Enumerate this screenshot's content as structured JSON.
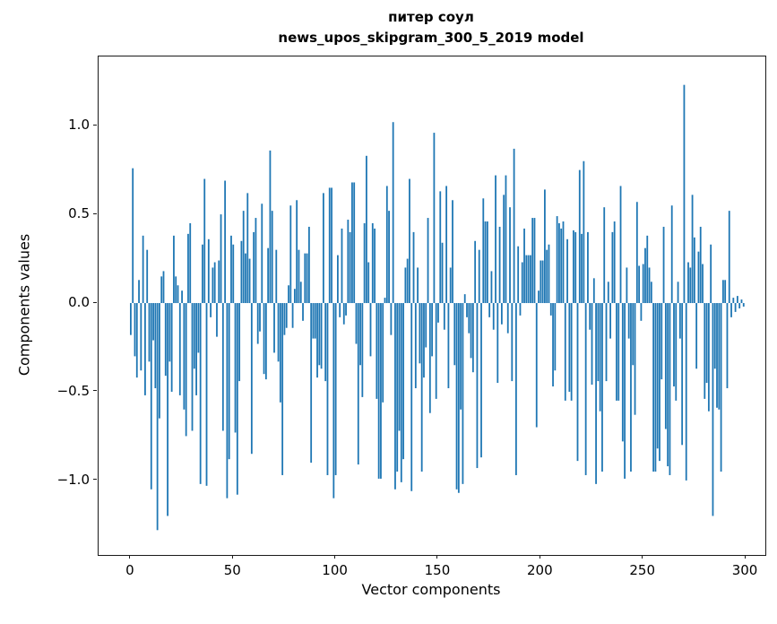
{
  "figure": {
    "title_line1": "питер соул",
    "title_line2": "news_upos_skipgram_300_5_2019 model"
  },
  "chart_data": {
    "type": "bar",
    "title": "питер соул",
    "subtitle": "news_upos_skipgram_300_5_2019 model",
    "xlabel": "Vector components",
    "ylabel": "Components values",
    "bar_color": "#1f77b4",
    "n_bars": 300,
    "x_is_index": true,
    "xlim": [
      -15.7,
      309.6
    ],
    "ylim": [
      -1.42,
      1.39
    ],
    "grid": false,
    "x_ticks": [
      0,
      50,
      100,
      150,
      200,
      250,
      300
    ],
    "x_tick_labels": [
      "0",
      "50",
      "100",
      "150",
      "200",
      "250",
      "300"
    ],
    "y_ticks": [
      -1.0,
      -0.5,
      0.0,
      0.5,
      1.0
    ],
    "y_tick_labels": [
      "−1.0",
      "−0.5",
      "0.0",
      "0.5",
      "1.0"
    ],
    "values": [
      -0.18,
      0.76,
      -0.3,
      -0.42,
      0.13,
      -0.38,
      0.38,
      -0.52,
      0.3,
      -0.33,
      -1.05,
      -0.21,
      -0.48,
      -1.28,
      -0.65,
      0.15,
      0.18,
      -0.41,
      -1.2,
      -0.33,
      -0.5,
      0.38,
      0.15,
      0.1,
      -0.52,
      0.07,
      -0.6,
      -0.75,
      0.39,
      0.45,
      -0.72,
      -0.37,
      -0.52,
      -0.28,
      -1.02,
      0.33,
      0.7,
      -1.03,
      0.36,
      -0.08,
      0.2,
      0.23,
      -0.19,
      0.24,
      0.5,
      -0.72,
      0.69,
      -1.1,
      -0.88,
      0.38,
      0.33,
      -0.73,
      -1.08,
      -0.44,
      0.35,
      0.52,
      0.28,
      0.62,
      0.25,
      -0.85,
      0.4,
      0.48,
      -0.23,
      -0.16,
      0.56,
      -0.4,
      -0.43,
      0.31,
      0.86,
      0.52,
      -0.28,
      0.3,
      -0.33,
      -0.56,
      -0.97,
      -0.18,
      -0.14,
      0.1,
      0.55,
      -0.14,
      0.08,
      0.58,
      0.3,
      0.12,
      -0.1,
      0.28,
      0.28,
      0.43,
      -0.9,
      -0.2,
      -0.2,
      -0.42,
      -0.35,
      -0.37,
      0.62,
      -0.44,
      -0.97,
      0.65,
      0.65,
      -1.1,
      -0.97,
      0.27,
      -0.08,
      0.42,
      -0.12,
      -0.07,
      0.47,
      0.4,
      0.68,
      0.68,
      -0.23,
      -0.91,
      -0.35,
      -0.53,
      0.45,
      0.83,
      0.23,
      -0.3,
      0.45,
      0.42,
      -0.54,
      -0.99,
      -0.99,
      -0.56,
      0.03,
      0.66,
      0.52,
      -0.18,
      1.02,
      -1.05,
      -0.95,
      -0.72,
      -1.01,
      -0.88,
      0.2,
      0.25,
      0.7,
      -1.06,
      0.4,
      -0.48,
      0.2,
      -0.34,
      -0.95,
      -0.42,
      -0.25,
      0.48,
      -0.62,
      -0.3,
      0.96,
      -0.54,
      -0.11,
      0.63,
      0.34,
      -0.15,
      0.66,
      -0.48,
      0.2,
      0.58,
      -0.35,
      -1.05,
      -1.07,
      -0.6,
      -1.02,
      0.05,
      -0.08,
      -0.17,
      -0.31,
      -0.39,
      0.35,
      -0.93,
      0.3,
      -0.87,
      0.59,
      0.46,
      0.46,
      -0.08,
      0.18,
      -0.15,
      0.72,
      -0.45,
      0.43,
      -0.12,
      0.61,
      0.72,
      -0.17,
      0.54,
      -0.44,
      0.87,
      -0.97,
      0.32,
      -0.07,
      0.23,
      0.42,
      0.27,
      0.27,
      0.27,
      0.48,
      0.48,
      -0.7,
      0.07,
      0.24,
      0.24,
      0.64,
      0.3,
      0.33,
      -0.07,
      -0.47,
      -0.38,
      0.49,
      0.45,
      0.42,
      0.46,
      -0.55,
      0.36,
      -0.5,
      -0.55,
      0.41,
      0.4,
      -0.89,
      0.75,
      0.39,
      0.8,
      -0.97,
      0.4,
      -0.15,
      -0.46,
      0.14,
      -1.02,
      -0.44,
      -0.61,
      -0.95,
      0.54,
      -0.44,
      0.12,
      -0.2,
      0.4,
      0.46,
      -0.55,
      -0.55,
      0.66,
      -0.78,
      -0.99,
      0.2,
      -0.2,
      -0.95,
      -0.35,
      -0.63,
      0.57,
      0.21,
      -0.1,
      0.22,
      0.31,
      0.38,
      0.2,
      0.12,
      -0.95,
      -0.95,
      -0.82,
      -0.89,
      -0.43,
      0.43,
      -0.71,
      -0.92,
      -0.97,
      0.55,
      -0.47,
      -0.55,
      0.12,
      -0.2,
      -0.8,
      1.23,
      -1.0,
      0.23,
      0.2,
      0.61,
      0.37,
      -0.37,
      0.29,
      0.43,
      0.22,
      -0.54,
      -0.45,
      -0.61,
      0.33,
      -1.2,
      -0.37,
      -0.59,
      -0.6,
      -0.95,
      0.13,
      0.13,
      -0.48,
      0.52,
      -0.08,
      0.03,
      -0.05,
      0.04,
      -0.03,
      0.02,
      -0.02
    ]
  }
}
